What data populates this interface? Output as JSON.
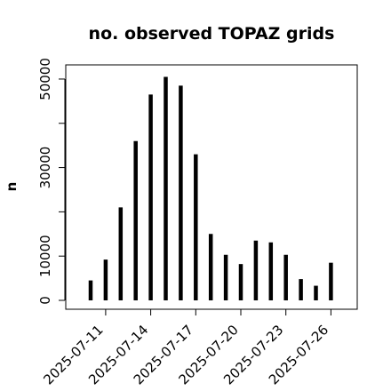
{
  "chart_data": {
    "type": "bar",
    "title": "no. observed TOPAZ grids",
    "xlabel": "",
    "ylabel": "n",
    "dates": [
      "2025-07-10",
      "2025-07-11",
      "2025-07-12",
      "2025-07-13",
      "2025-07-14",
      "2025-07-15",
      "2025-07-16",
      "2025-07-17",
      "2025-07-18",
      "2025-07-19",
      "2025-07-20",
      "2025-07-21",
      "2025-07-22",
      "2025-07-23",
      "2025-07-24",
      "2025-07-25",
      "2025-07-26"
    ],
    "values": [
      4500,
      9200,
      21000,
      36000,
      46500,
      50500,
      48500,
      33000,
      15000,
      10300,
      8200,
      13500,
      13100,
      10300,
      4800,
      3300,
      8500
    ],
    "xtick_labels": [
      "2025-07-11",
      "2025-07-14",
      "2025-07-17",
      "2025-07-20",
      "2025-07-23",
      "2025-07-26"
    ],
    "xtick_colors": [
      "#000000",
      "#000000",
      "#228B22",
      "#000000",
      "#000000",
      "#000000"
    ],
    "yticks": [
      0,
      10000,
      30000,
      50000
    ],
    "ylim": [
      0,
      52000
    ],
    "bar_color": "#000000",
    "grid": false
  }
}
